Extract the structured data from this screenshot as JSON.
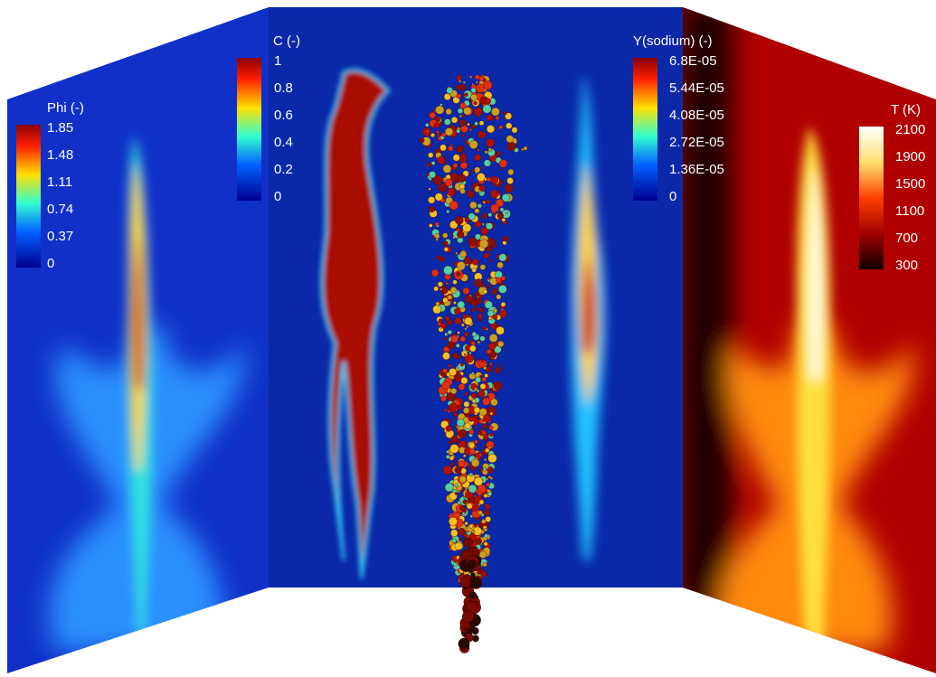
{
  "colorbars": [
    {
      "title": "Phi (-)",
      "ticks": [
        "1.85",
        "1.48",
        "1.11",
        "0.74",
        "0.37",
        "0"
      ]
    },
    {
      "title": "C (-)",
      "ticks": [
        "1",
        "0.8",
        "0.6",
        "0.4",
        "0.2",
        "0"
      ]
    },
    {
      "title": "Y(sodium) (-)",
      "ticks": [
        "6.8E-05",
        "5.44E-05",
        "4.08E-05",
        "2.72E-05",
        "1.36E-05",
        "0"
      ]
    },
    {
      "title": "T (K)",
      "ticks": [
        "2100",
        "1900",
        "1500",
        "1100",
        "700",
        "300"
      ]
    }
  ]
}
